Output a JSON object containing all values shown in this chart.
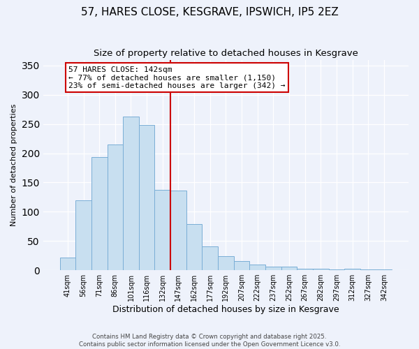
{
  "title": "57, HARES CLOSE, KESGRAVE, IPSWICH, IP5 2EZ",
  "subtitle": "Size of property relative to detached houses in Kesgrave",
  "xlabel": "Distribution of detached houses by size in Kesgrave",
  "ylabel": "Number of detached properties",
  "bar_labels": [
    "41sqm",
    "56sqm",
    "71sqm",
    "86sqm",
    "101sqm",
    "116sqm",
    "132sqm",
    "147sqm",
    "162sqm",
    "177sqm",
    "192sqm",
    "207sqm",
    "222sqm",
    "237sqm",
    "252sqm",
    "267sqm",
    "282sqm",
    "297sqm",
    "312sqm",
    "327sqm",
    "342sqm"
  ],
  "bar_values": [
    22,
    120,
    193,
    215,
    263,
    248,
    137,
    136,
    79,
    41,
    24,
    16,
    10,
    6,
    6,
    3,
    2,
    1,
    2,
    1,
    1
  ],
  "bar_color": "#c8dff0",
  "bar_edge_color": "#7aaed6",
  "vline_pos": 6.5,
  "vline_color": "#cc0000",
  "ylim": [
    0,
    360
  ],
  "yticks": [
    0,
    50,
    100,
    150,
    200,
    250,
    300,
    350
  ],
  "annotation_title": "57 HARES CLOSE: 142sqm",
  "annotation_line1": "← 77% of detached houses are smaller (1,150)",
  "annotation_line2": "23% of semi-detached houses are larger (342) →",
  "annotation_box_color": "#ffffff",
  "annotation_box_edge": "#cc0000",
  "footer_line1": "Contains HM Land Registry data © Crown copyright and database right 2025.",
  "footer_line2": "Contains public sector information licensed under the Open Government Licence v3.0.",
  "bg_color": "#eef2fb",
  "grid_color": "#ffffff",
  "title_fontsize": 11,
  "subtitle_fontsize": 9.5,
  "ylabel_fontsize": 8,
  "xlabel_fontsize": 9,
  "tick_fontsize": 7,
  "annot_fontsize": 8
}
